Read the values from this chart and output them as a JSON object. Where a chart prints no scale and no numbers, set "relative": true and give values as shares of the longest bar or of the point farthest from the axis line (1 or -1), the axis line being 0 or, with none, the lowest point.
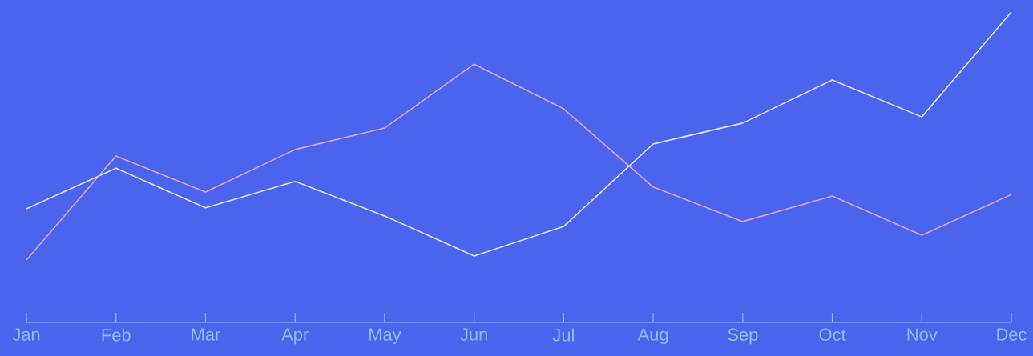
{
  "chart_data": {
    "type": "line",
    "relative": true,
    "categories": [
      "Jan",
      "Feb",
      "Mar",
      "Apr",
      "May",
      "Jun",
      "Jul",
      "Aug",
      "Sep",
      "Oct",
      "Nov",
      "Dec"
    ],
    "series": [
      {
        "color": "#dde6f2",
        "values": [
          0.366,
          0.497,
          0.369,
          0.454,
          0.343,
          0.214,
          0.309,
          0.575,
          0.642,
          0.781,
          0.662,
          1
        ]
      },
      {
        "color": "#e4a2cc",
        "values": [
          0.201,
          0.536,
          0.42,
          0.557,
          0.626,
          0.832,
          0.688,
          0.436,
          0.325,
          0.407,
          0.281,
          0.412
        ]
      }
    ],
    "marker": "none",
    "line_style": "solid"
  }
}
